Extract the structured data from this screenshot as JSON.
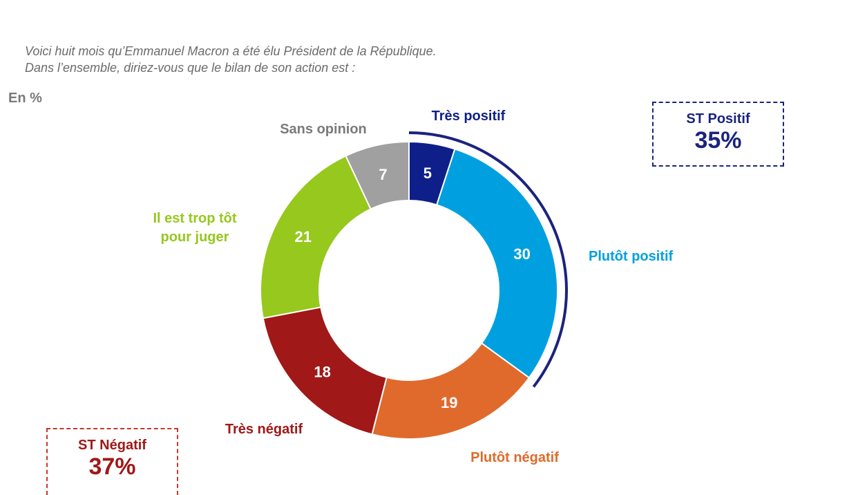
{
  "question": [
    "Voici huit mois qu’Emmanuel Macron a été élu Président de la République.",
    "Dans l’ensemble, diriez-vous que le bilan de son action est :"
  ],
  "unit_label": "En %",
  "chart_data": {
    "type": "pie",
    "subtype": "donut",
    "categories": [
      "Très positif",
      "Plutôt positif",
      "Plutôt négatif",
      "Très négatif",
      "Il est trop tôt pour juger",
      "Sans opinion"
    ],
    "values": [
      5,
      30,
      19,
      18,
      21,
      7
    ],
    "colors": [
      "#0f1f8a",
      "#00a0e0",
      "#e06a2c",
      "#a01818",
      "#96c81e",
      "#a0a0a0"
    ],
    "label_colors": [
      "#0f1f8a",
      "#00a0e0",
      "#e06a2c",
      "#a01818",
      "#96c81e",
      "#7a7a7a"
    ],
    "legend": "labels-outside"
  },
  "subtotals": {
    "positive": {
      "label": "ST Positif",
      "value": "35%",
      "color": "#1a237e"
    },
    "negative": {
      "label": "ST Négatif",
      "value": "37%",
      "color": "#a01818"
    }
  }
}
